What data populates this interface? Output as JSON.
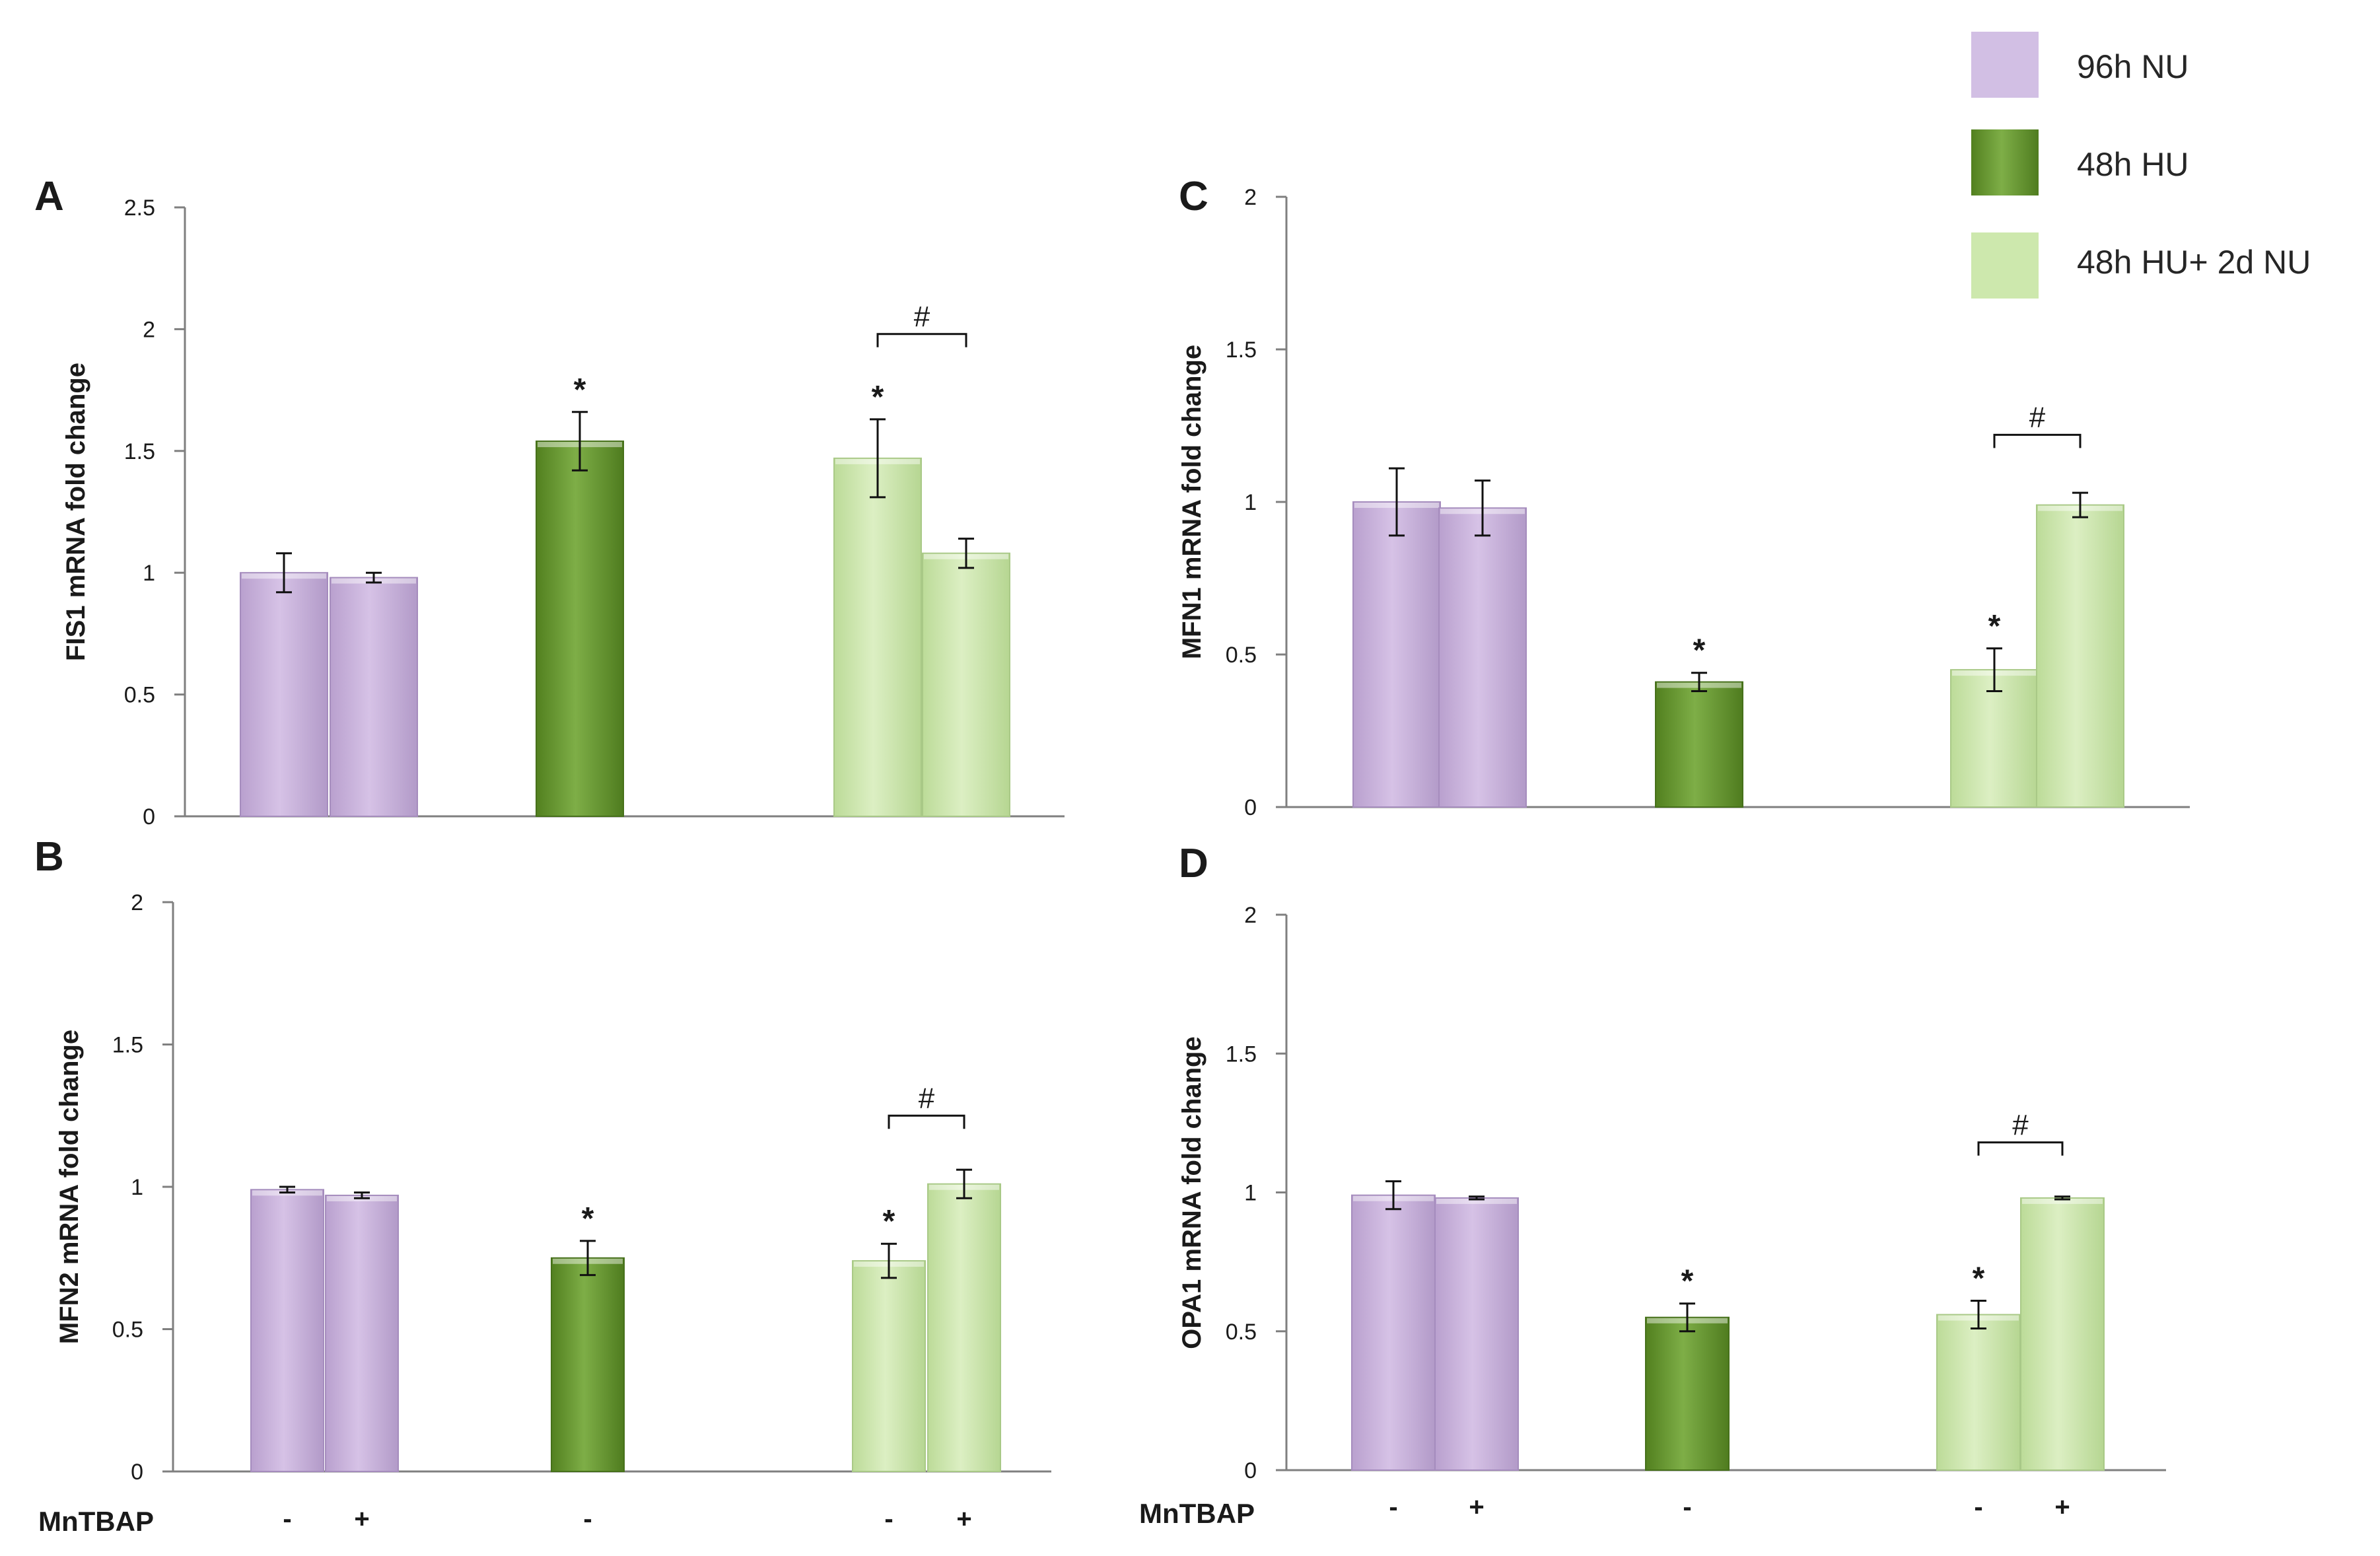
{
  "legend": [
    {
      "label": "96h NU",
      "color": "#cdb5e0"
    },
    {
      "label": "48h HU",
      "color": "#6e9c38"
    },
    {
      "label": "48h HU+ 2d NU",
      "color": "#cde8ad"
    }
  ],
  "x_row_label": "MnTBAP",
  "chart_data": [
    {
      "type": "bar",
      "panel": "A",
      "ylabel": "FIS1 mRNA fold change",
      "ylim": [
        0,
        2.5
      ],
      "yticks": [
        "0",
        "0.5",
        "1",
        "1.5",
        "2",
        "2.5"
      ],
      "bars": [
        {
          "group": "96h NU",
          "mntbap": "-",
          "value": 1.0,
          "error": 0.08,
          "star": false
        },
        {
          "group": "96h NU",
          "mntbap": "+",
          "value": 0.98,
          "error": 0.02,
          "star": false
        },
        {
          "group": "48h HU",
          "mntbap": "-",
          "value": 1.54,
          "error": 0.12,
          "star": true
        },
        {
          "group": "48h HU+ 2d NU",
          "mntbap": "-",
          "value": 1.47,
          "error": 0.16,
          "star": true
        },
        {
          "group": "48h HU+ 2d NU",
          "mntbap": "+",
          "value": 1.08,
          "error": 0.06,
          "star": false
        }
      ],
      "bracket": {
        "from": 3,
        "to": 4,
        "value": 1.98,
        "symbol": "#"
      }
    },
    {
      "type": "bar",
      "panel": "B",
      "ylabel": "MFN2 mRNA fold change",
      "ylim": [
        0,
        2
      ],
      "yticks": [
        "0",
        "0.5",
        "1",
        "1.5",
        "2"
      ],
      "bars": [
        {
          "group": "96h NU",
          "mntbap": "-",
          "value": 0.99,
          "error": 0.01,
          "star": false
        },
        {
          "group": "96h NU",
          "mntbap": "+",
          "value": 0.97,
          "error": 0.01,
          "star": false
        },
        {
          "group": "48h HU",
          "mntbap": "-",
          "value": 0.75,
          "error": 0.06,
          "star": true
        },
        {
          "group": "48h HU+ 2d NU",
          "mntbap": "-",
          "value": 0.74,
          "error": 0.06,
          "star": true
        },
        {
          "group": "48h HU+ 2d NU",
          "mntbap": "+",
          "value": 1.01,
          "error": 0.05,
          "star": false
        }
      ],
      "bracket": {
        "from": 3,
        "to": 4,
        "value": 1.25,
        "symbol": "#"
      }
    },
    {
      "type": "bar",
      "panel": "C",
      "ylabel": "MFN1 mRNA fold change",
      "ylim": [
        0,
        2
      ],
      "yticks": [
        "0",
        "0.5",
        "1",
        "1.5",
        "2"
      ],
      "bars": [
        {
          "group": "96h NU",
          "mntbap": "-",
          "value": 1.0,
          "error": 0.11,
          "star": false
        },
        {
          "group": "96h NU",
          "mntbap": "+",
          "value": 0.98,
          "error": 0.09,
          "star": false
        },
        {
          "group": "48h HU",
          "mntbap": "-",
          "value": 0.41,
          "error": 0.03,
          "star": true
        },
        {
          "group": "48h HU+ 2d NU",
          "mntbap": "-",
          "value": 0.45,
          "error": 0.07,
          "star": true
        },
        {
          "group": "48h HU+ 2d NU",
          "mntbap": "+",
          "value": 0.99,
          "error": 0.04,
          "star": false
        }
      ],
      "bracket": {
        "from": 3,
        "to": 4,
        "value": 1.22,
        "symbol": "#"
      }
    },
    {
      "type": "bar",
      "panel": "D",
      "ylabel": "OPA1  mRNA fold change",
      "ylim": [
        0,
        2
      ],
      "yticks": [
        "0",
        "0.5",
        "1",
        "1.5",
        "2"
      ],
      "bars": [
        {
          "group": "96h NU",
          "mntbap": "-",
          "value": 0.99,
          "error": 0.05,
          "star": false
        },
        {
          "group": "96h NU",
          "mntbap": "+",
          "value": 0.98,
          "error": 0.005,
          "star": false
        },
        {
          "group": "48h HU",
          "mntbap": "-",
          "value": 0.55,
          "error": 0.05,
          "star": true
        },
        {
          "group": "48h HU+ 2d NU",
          "mntbap": "-",
          "value": 0.56,
          "error": 0.05,
          "star": true
        },
        {
          "group": "48h HU+ 2d NU",
          "mntbap": "+",
          "value": 0.98,
          "error": 0.005,
          "star": false
        }
      ],
      "bracket": {
        "from": 3,
        "to": 4,
        "value": 1.18,
        "symbol": "#"
      }
    }
  ]
}
